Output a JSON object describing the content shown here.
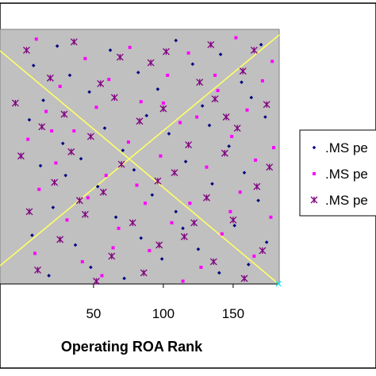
{
  "chart_data": {
    "type": "scatter",
    "xlabel": "Operating ROA Rank",
    "xlim": [
      -17,
      183
    ],
    "ylim": [
      0,
      183
    ],
    "x_ticks": [
      50,
      100,
      150
    ],
    "grid": false,
    "legend_placement": "right",
    "plot_background": "#c0c0c0",
    "series": [
      {
        "name": ".MS pe",
        "marker": "diamond",
        "color": "#000080",
        "points": [
          [
            24,
            171
          ],
          [
            62,
            168
          ],
          [
            109,
            175
          ],
          [
            141,
            165
          ],
          [
            170,
            172
          ],
          [
            7,
            157
          ],
          [
            33,
            150
          ],
          [
            82,
            152
          ],
          [
            121,
            158
          ],
          [
            156,
            145
          ],
          [
            14,
            132
          ],
          [
            47,
            138
          ],
          [
            96,
            140
          ],
          [
            128,
            128
          ],
          [
            163,
            134
          ],
          [
            4,
            118
          ],
          [
            58,
            112
          ],
          [
            88,
            121
          ],
          [
            133,
            114
          ],
          [
            173,
            120
          ],
          [
            28,
            101
          ],
          [
            71,
            96
          ],
          [
            104,
            108
          ],
          [
            147,
            99
          ],
          [
            12,
            85
          ],
          [
            41,
            90
          ],
          [
            79,
            82
          ],
          [
            116,
            88
          ],
          [
            158,
            80
          ],
          [
            53,
            70
          ],
          [
            92,
            64
          ],
          [
            135,
            72
          ],
          [
            168,
            60
          ],
          [
            21,
            55
          ],
          [
            66,
            48
          ],
          [
            109,
            52
          ],
          [
            151,
            42
          ],
          [
            6,
            35
          ],
          [
            37,
            28
          ],
          [
            84,
            33
          ],
          [
            125,
            25
          ],
          [
            174,
            30
          ],
          [
            48,
            12
          ],
          [
            99,
            18
          ],
          [
            140,
            8
          ],
          [
            18,
            6
          ],
          [
            72,
            4
          ],
          [
            161,
            14
          ],
          [
            30,
            78
          ],
          [
            114,
            40
          ]
        ]
      },
      {
        "name": ".MS pe",
        "marker": "square",
        "color": "#ff00ff",
        "points": [
          [
            9,
            176
          ],
          [
            44,
            162
          ],
          [
            76,
            170
          ],
          [
            118,
            166
          ],
          [
            152,
            177
          ],
          [
            178,
            160
          ],
          [
            26,
            142
          ],
          [
            61,
            147
          ],
          [
            103,
            150
          ],
          [
            139,
            139
          ],
          [
            171,
            146
          ],
          [
            16,
            124
          ],
          [
            52,
            127
          ],
          [
            84,
            131
          ],
          [
            124,
            120
          ],
          [
            160,
            125
          ],
          [
            3,
            104
          ],
          [
            36,
            110
          ],
          [
            75,
            102
          ],
          [
            112,
            116
          ],
          [
            149,
            106
          ],
          [
            179,
            98
          ],
          [
            23,
            87
          ],
          [
            59,
            78
          ],
          [
            98,
            92
          ],
          [
            131,
            84
          ],
          [
            166,
            89
          ],
          [
            11,
            68
          ],
          [
            46,
            62
          ],
          [
            81,
            71
          ],
          [
            119,
            58
          ],
          [
            155,
            66
          ],
          [
            31,
            46
          ],
          [
            68,
            40
          ],
          [
            106,
            44
          ],
          [
            142,
            36
          ],
          [
            177,
            48
          ],
          [
            8,
            22
          ],
          [
            42,
            16
          ],
          [
            90,
            24
          ],
          [
            127,
            12
          ],
          [
            165,
            20
          ],
          [
            56,
            6
          ],
          [
            114,
            2
          ],
          [
            148,
            52
          ],
          [
            20,
            110
          ],
          [
            87,
            58
          ],
          [
            137,
            150
          ],
          [
            64,
            26
          ],
          [
            100,
            130
          ]
        ]
      },
      {
        "name": ".MS pe",
        "marker": "star",
        "color": "#800080",
        "points": [
          [
            2,
            168
          ],
          [
            36,
            174
          ],
          [
            69,
            163
          ],
          [
            102,
            167
          ],
          [
            134,
            172
          ],
          [
            165,
            168
          ],
          [
            19,
            148
          ],
          [
            55,
            144
          ],
          [
            91,
            159
          ],
          [
            126,
            145
          ],
          [
            157,
            153
          ],
          [
            -6,
            130
          ],
          [
            29,
            122
          ],
          [
            65,
            134
          ],
          [
            100,
            126
          ],
          [
            137,
            133
          ],
          [
            174,
            129
          ],
          [
            13,
            113
          ],
          [
            48,
            106
          ],
          [
            83,
            117
          ],
          [
            118,
            100
          ],
          [
            153,
            112
          ],
          [
            -2,
            92
          ],
          [
            34,
            95
          ],
          [
            70,
            86
          ],
          [
            108,
            80
          ],
          [
            144,
            94
          ],
          [
            176,
            84
          ],
          [
            22,
            73
          ],
          [
            57,
            66
          ],
          [
            96,
            74
          ],
          [
            131,
            62
          ],
          [
            167,
            70
          ],
          [
            4,
            52
          ],
          [
            44,
            50
          ],
          [
            78,
            44
          ],
          [
            115,
            34
          ],
          [
            150,
            46
          ],
          [
            26,
            32
          ],
          [
            63,
            20
          ],
          [
            97,
            28
          ],
          [
            136,
            16
          ],
          [
            171,
            24
          ],
          [
            10,
            10
          ],
          [
            52,
            2
          ],
          [
            86,
            8
          ],
          [
            122,
            44
          ],
          [
            158,
            4
          ],
          [
            40,
            60
          ],
          [
            145,
            120
          ]
        ]
      }
    ]
  }
}
